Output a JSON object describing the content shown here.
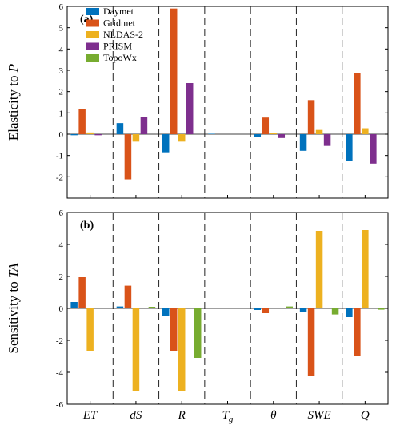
{
  "chart_data": [
    {
      "type": "bar",
      "panel_label": "(a)",
      "ylabel_prefix": "Elasticity to ",
      "ylabel_var": "P",
      "ylim": [
        -3,
        6
      ],
      "yticks": [
        -2,
        -1,
        0,
        1,
        2,
        3,
        4,
        5,
        6
      ],
      "categories": [
        "ET",
        "dS",
        "R",
        "Tg",
        "θ",
        "SWE",
        "Q"
      ],
      "legend_position": "top-left",
      "series": [
        {
          "name": "Daymet",
          "values": [
            -0.05,
            0.52,
            -0.85,
            0.02,
            -0.15,
            -0.78,
            -1.25
          ]
        },
        {
          "name": "Gridmet",
          "values": [
            1.18,
            -2.12,
            5.9,
            0.0,
            0.78,
            1.6,
            2.85
          ]
        },
        {
          "name": "NLDAS-2",
          "values": [
            0.08,
            -0.35,
            -0.35,
            0.0,
            0.05,
            0.2,
            0.28
          ]
        },
        {
          "name": "PRISM",
          "values": [
            -0.05,
            0.82,
            2.4,
            0.0,
            -0.18,
            -0.55,
            -1.38
          ]
        },
        {
          "name": "TopoWx",
          "values": [
            0.0,
            0.0,
            0.0,
            0.0,
            0.0,
            0.0,
            0.0
          ]
        }
      ]
    },
    {
      "type": "bar",
      "panel_label": "(b)",
      "ylabel_prefix": "Sensitivity to ",
      "ylabel_var": "TA",
      "ylim": [
        -6,
        6
      ],
      "yticks": [
        -6,
        -4,
        -2,
        0,
        2,
        4,
        6
      ],
      "categories": [
        "ET",
        "dS",
        "R",
        "Tg",
        "θ",
        "SWE",
        "Q"
      ],
      "series": [
        {
          "name": "Daymet",
          "values": [
            0.4,
            0.12,
            -0.5,
            0.0,
            -0.1,
            -0.22,
            -0.55
          ]
        },
        {
          "name": "Gridmet",
          "values": [
            1.95,
            1.42,
            -2.65,
            0.0,
            -0.3,
            -4.25,
            -3.0
          ]
        },
        {
          "name": "NLDAS-2",
          "values": [
            -2.65,
            -5.2,
            -5.2,
            0.0,
            0.0,
            4.85,
            4.9
          ]
        },
        {
          "name": "PRISM",
          "values": [
            0.0,
            0.0,
            0.0,
            0.0,
            0.0,
            0.0,
            0.0
          ]
        },
        {
          "name": "TopoWx",
          "values": [
            0.05,
            0.1,
            -3.1,
            0.0,
            0.12,
            -0.38,
            -0.08
          ]
        }
      ]
    }
  ],
  "colors": {
    "Daymet": "#0072BD",
    "Gridmet": "#D95319",
    "NLDAS-2": "#EDB120",
    "PRISM": "#7E2F8E",
    "TopoWx": "#77AC30"
  }
}
